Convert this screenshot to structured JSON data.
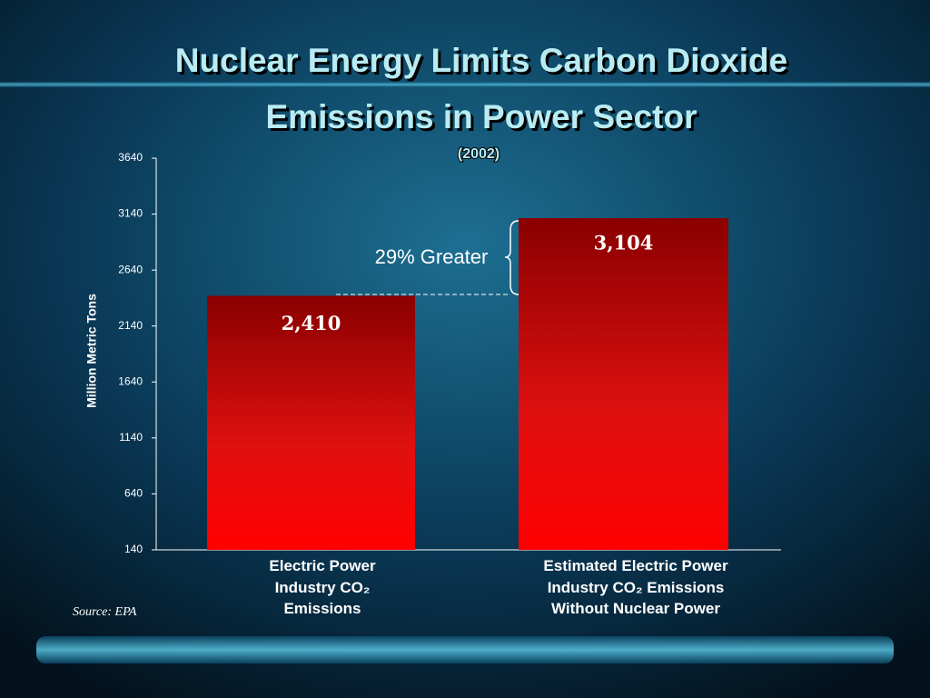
{
  "chart_data": {
    "type": "bar",
    "title": "Nuclear Energy Limits Carbon Dioxide Emissions in Power Sector",
    "subtitle": "(2002)",
    "y_label": "Million Metric Tons",
    "categories": [
      "Electric Power Industry CO₂ Emissions",
      "Estimated Electric Power Industry CO₂ Emissions Without Nuclear Power"
    ],
    "values": [
      2410,
      3104
    ],
    "value_labels": [
      "2,410",
      "3,104"
    ],
    "color": "#e00000",
    "ylim": [
      140,
      3640
    ],
    "yticks": [
      140,
      640,
      1140,
      1640,
      2140,
      2640,
      3140,
      3640
    ],
    "grid": false,
    "annotation": "29% Greater",
    "source": "Source: EPA"
  }
}
